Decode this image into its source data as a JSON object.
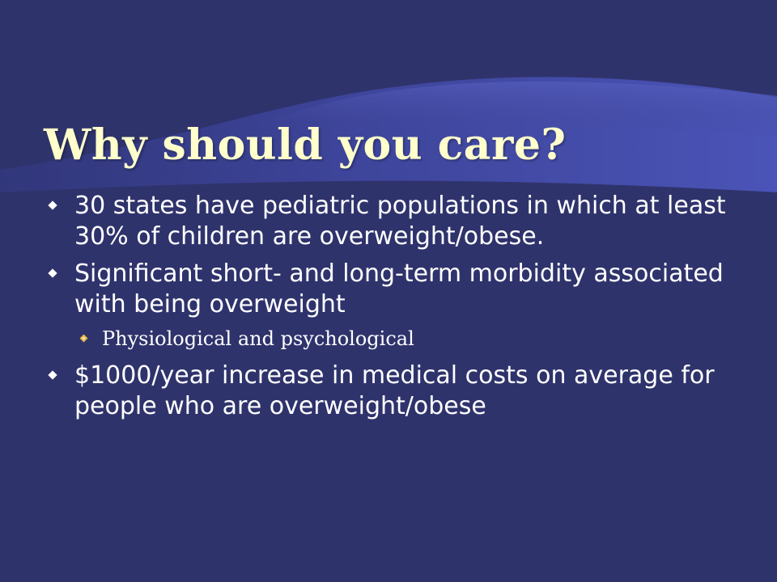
{
  "slide": {
    "title": "Why should you care?",
    "bullets": [
      {
        "text": "30 states have pediatric populations in which at least 30% of children are overweight/obese."
      },
      {
        "text": "Significant short- and long-term morbidity associated with being overweight",
        "sub": "Physiological and psychological"
      },
      {
        "text": "$1000/year increase in medical costs on average for people who are overweight/obese"
      }
    ]
  },
  "colors": {
    "background": "#2f336c",
    "title": "#ffffcc",
    "body_text": "#ffffff",
    "swoosh": "#4a52b0"
  },
  "icons": {
    "bullet": "diamond-bullet-icon",
    "sub_bullet": "small-diamond-bullet-icon"
  }
}
